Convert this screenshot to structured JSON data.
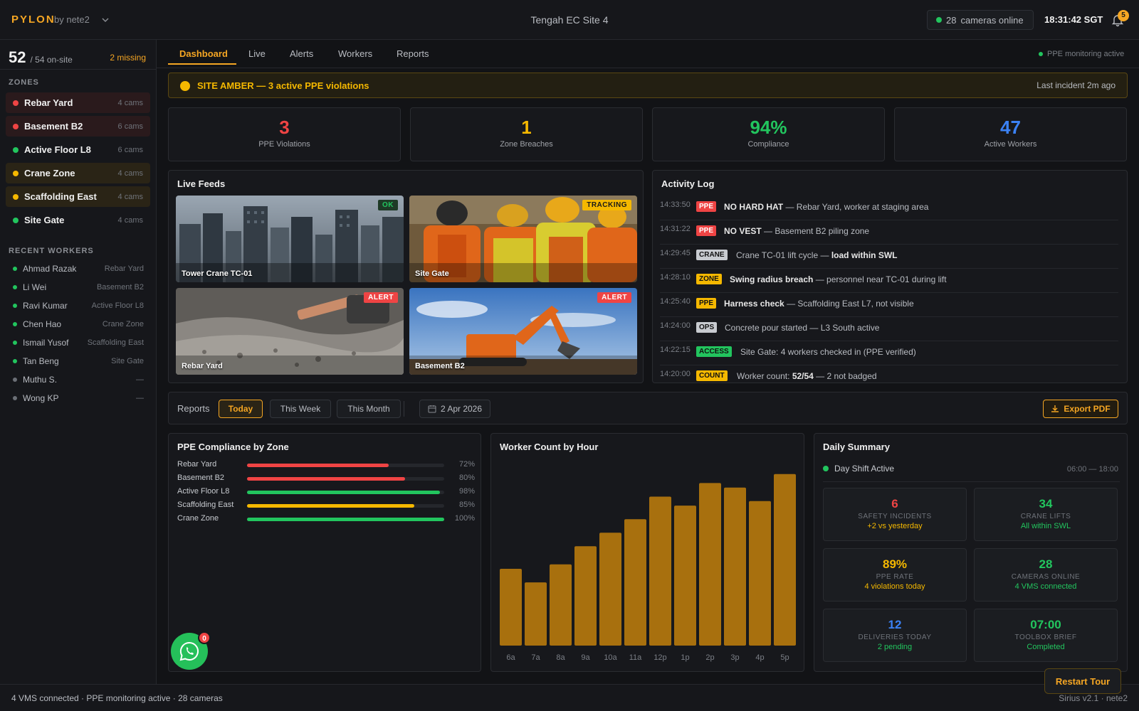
{
  "header": {
    "brand": "PYLON",
    "brand_sub": "by nete2",
    "site_title": "Tengah EC Site 4",
    "cameras_count": "28",
    "cameras_label": "cameras online",
    "clock": "18:31:42 SGT",
    "notifications": "5"
  },
  "sidebar": {
    "onsite_count": "52",
    "onsite_total": "/ 54 on-site",
    "missing": "2 missing",
    "zones_label": "ZONES",
    "zones": [
      {
        "name": "Rebar Yard",
        "cams": "4 cams",
        "status": "red"
      },
      {
        "name": "Basement B2",
        "cams": "6 cams",
        "status": "red"
      },
      {
        "name": "Active Floor L8",
        "cams": "6 cams",
        "status": "green"
      },
      {
        "name": "Crane Zone",
        "cams": "4 cams",
        "status": "amber"
      },
      {
        "name": "Scaffolding East",
        "cams": "4 cams",
        "status": "amber"
      },
      {
        "name": "Site Gate",
        "cams": "4 cams",
        "status": "green"
      }
    ],
    "workers_label": "RECENT WORKERS",
    "workers": [
      {
        "name": "Ahmad Razak",
        "zone": "Rebar Yard",
        "status": "green"
      },
      {
        "name": "Li Wei",
        "zone": "Basement B2",
        "status": "green"
      },
      {
        "name": "Ravi Kumar",
        "zone": "Active Floor L8",
        "status": "green"
      },
      {
        "name": "Chen Hao",
        "zone": "Crane Zone",
        "status": "green"
      },
      {
        "name": "Ismail Yusof",
        "zone": "Scaffolding East",
        "status": "green"
      },
      {
        "name": "Tan Beng",
        "zone": "Site Gate",
        "status": "green"
      },
      {
        "name": "Muthu S.",
        "zone": "—",
        "status": "grey"
      },
      {
        "name": "Wong KP",
        "zone": "—",
        "status": "grey"
      }
    ]
  },
  "tabs": [
    "Dashboard",
    "Live",
    "Alerts",
    "Workers",
    "Reports"
  ],
  "ppe_status": "PPE monitoring active",
  "banner": {
    "text": "SITE AMBER — 3 active PPE violations",
    "right": "Last incident 2m ago"
  },
  "kpis": [
    {
      "value": "3",
      "label": "PPE Violations",
      "color": "#ef4444"
    },
    {
      "value": "1",
      "label": "Zone Breaches",
      "color": "#f5b800"
    },
    {
      "value": "94%",
      "label": "Compliance",
      "color": "#22c55e"
    },
    {
      "value": "47",
      "label": "Active Workers",
      "color": "#3b82f6"
    }
  ],
  "live_feeds": {
    "title": "Live Feeds",
    "feeds": [
      {
        "label": "Tower Crane TC-01",
        "badge": "OK",
        "badge_color": "#22c55e",
        "scene": "city"
      },
      {
        "label": "Site Gate",
        "badge": "TRACKING",
        "badge_color": "#f5b800",
        "scene": "workers"
      },
      {
        "label": "Rebar Yard",
        "badge": "ALERT",
        "badge_color": "#ef4444",
        "scene": "concrete"
      },
      {
        "label": "Basement B2",
        "badge": "ALERT",
        "badge_color": "#ef4444",
        "scene": "excavator"
      }
    ]
  },
  "activity_log": {
    "title": "Activity Log",
    "entries": [
      {
        "time": "14:33:50",
        "tag": "PPE",
        "tag_color": "#ef4444",
        "bold": "NO HARD HAT",
        "rest": " — Rebar Yard, worker at staging area"
      },
      {
        "time": "14:31:22",
        "tag": "PPE",
        "tag_color": "#ef4444",
        "bold": "NO VEST",
        "rest": " — Basement B2 piling zone"
      },
      {
        "time": "14:29:45",
        "tag": "CRANE",
        "tag_color": "#c8cbd0",
        "bold": "",
        "rest": "Crane TC-01 lift cycle — ",
        "bold2": "load within SWL"
      },
      {
        "time": "14:28:10",
        "tag": "ZONE",
        "tag_color": "#f5b800",
        "bold": "Swing radius breach",
        "rest": " — personnel near TC-01 during lift"
      },
      {
        "time": "14:25:40",
        "tag": "PPE",
        "tag_color": "#f5b800",
        "bold": "Harness check",
        "rest": " — Scaffolding East L7, not visible"
      },
      {
        "time": "14:24:00",
        "tag": "OPS",
        "tag_color": "#c8cbd0",
        "bold": "",
        "rest": "Concrete pour started — L3 South active"
      },
      {
        "time": "14:22:15",
        "tag": "ACCESS",
        "tag_color": "#22c55e",
        "bold": "",
        "rest": "Site Gate: 4 workers checked in (PPE verified)"
      },
      {
        "time": "14:20:00",
        "tag": "COUNT",
        "tag_color": "#f5b800",
        "bold": "",
        "rest": "Worker count: ",
        "bold2": "52/54",
        "rest2": " — 2 not badged"
      }
    ]
  },
  "reports": {
    "label": "Reports",
    "periods": [
      "Today",
      "This Week",
      "This Month"
    ],
    "active_period": "Today",
    "date": "2 Apr 2026",
    "export": "Export PDF"
  },
  "ppe_compliance": {
    "title": "PPE Compliance by Zone",
    "rows": [
      {
        "zone": "Rebar Yard",
        "value": 72,
        "label": "72%",
        "color": "#ef4444"
      },
      {
        "zone": "Basement B2",
        "value": 80,
        "label": "80%",
        "color": "#ef4444"
      },
      {
        "zone": "Active Floor L8",
        "value": 98,
        "label": "98%",
        "color": "#22c55e"
      },
      {
        "zone": "Scaffolding East",
        "value": 85,
        "label": "85%",
        "color": "#f5b800"
      },
      {
        "zone": "Crane Zone",
        "value": 100,
        "label": "100%",
        "color": "#22c55e"
      }
    ]
  },
  "chart_data": {
    "type": "bar",
    "title": "Worker Count by Hour",
    "categories": [
      "6a",
      "7a",
      "8a",
      "9a",
      "10a",
      "11a",
      "12p",
      "1p",
      "2p",
      "3p",
      "4p",
      "5p"
    ],
    "values": [
      17,
      14,
      18,
      22,
      25,
      28,
      33,
      31,
      36,
      35,
      32,
      38
    ],
    "ylim": [
      0,
      40
    ],
    "color": "#a8700e",
    "grid": false
  },
  "daily_summary": {
    "title": "Daily Summary",
    "shift": "Day Shift Active",
    "shift_hours": "06:00 — 18:00",
    "cards": [
      {
        "value": "6",
        "label": "SAFETY INCIDENTS",
        "sub": "+2 vs yesterday",
        "color": "#ef4444",
        "sub_color": "#f5b800"
      },
      {
        "value": "34",
        "label": "CRANE LIFTS",
        "sub": "All within SWL",
        "color": "#22c55e",
        "sub_color": "#22c55e"
      },
      {
        "value": "89%",
        "label": "PPE RATE",
        "sub": "4 violations today",
        "color": "#f5b800",
        "sub_color": "#f5b800"
      },
      {
        "value": "28",
        "label": "CAMERAS ONLINE",
        "sub": "4 VMS connected",
        "color": "#22c55e",
        "sub_color": "#22c55e"
      },
      {
        "value": "12",
        "label": "DELIVERIES TODAY",
        "sub": "2 pending",
        "color": "#3b82f6",
        "sub_color": "#22c55e"
      },
      {
        "value": "07:00",
        "label": "TOOLBOX BRIEF",
        "sub": "Completed",
        "color": "#22c55e",
        "sub_color": "#22c55e"
      }
    ]
  },
  "footer": {
    "left": "4 VMS connected · PPE monitoring active · 28 cameras",
    "right": "Sirius v2.1 · nete2"
  },
  "restart_tour": "Restart Tour",
  "chat_badge": "0"
}
